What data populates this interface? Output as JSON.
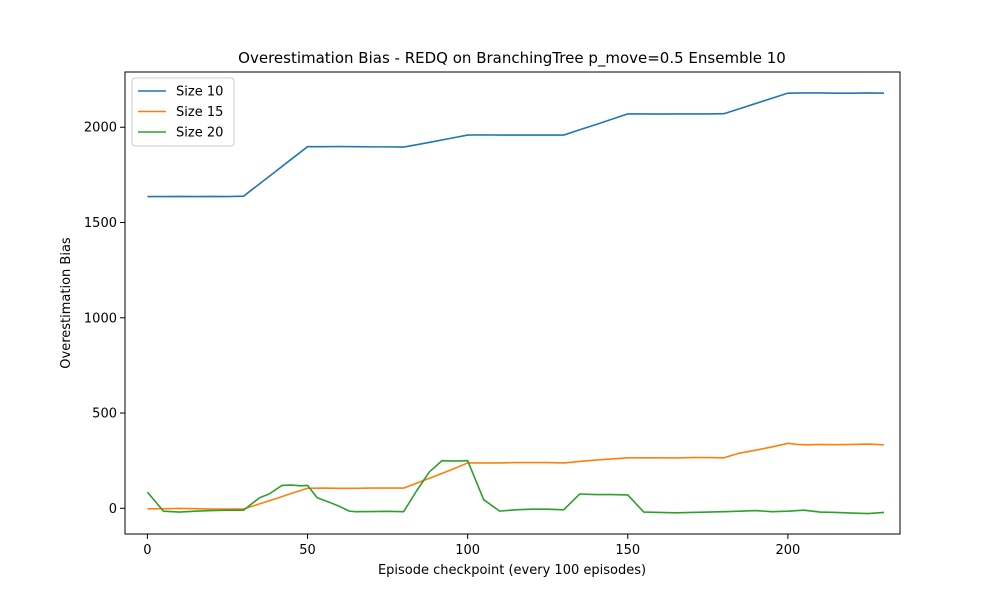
{
  "chart_data": {
    "type": "line",
    "title": "Overestimation Bias - REDQ on BranchingTree p_move=0.5 Ensemble 10",
    "xlabel": "Episode checkpoint (every 100 episodes)",
    "ylabel": "Overestimation Bias",
    "xlim": [
      -7,
      235
    ],
    "ylim": [
      -135,
      2290
    ],
    "xticks": [
      0,
      50,
      100,
      150,
      200
    ],
    "yticks": [
      0,
      500,
      1000,
      1500,
      2000
    ],
    "legend_position": "top-left",
    "grid": false,
    "series": [
      {
        "name": "Size 10",
        "color": "#1f77b4",
        "x": [
          0,
          5,
          10,
          15,
          20,
          25,
          30,
          35,
          40,
          45,
          50,
          55,
          60,
          65,
          70,
          75,
          80,
          85,
          90,
          95,
          100,
          105,
          110,
          115,
          120,
          125,
          130,
          135,
          140,
          145,
          150,
          155,
          160,
          165,
          170,
          175,
          180,
          185,
          190,
          195,
          200,
          205,
          210,
          215,
          220,
          225,
          230
        ],
        "values": [
          1636,
          1636,
          1637,
          1636,
          1637,
          1636,
          1638,
          1703,
          1768,
          1833,
          1898,
          1898,
          1899,
          1898,
          1897,
          1897,
          1896,
          1911,
          1927,
          1943,
          1959,
          1960,
          1959,
          1959,
          1959,
          1959,
          1959,
          1987,
          2014,
          2042,
          2070,
          2070,
          2069,
          2070,
          2070,
          2070,
          2071,
          2098,
          2125,
          2152,
          2179,
          2180,
          2180,
          2179,
          2179,
          2180,
          2179
        ]
      },
      {
        "name": "Size 15",
        "color": "#ff7f0e",
        "x": [
          0,
          5,
          10,
          15,
          20,
          25,
          30,
          35,
          40,
          45,
          50,
          55,
          60,
          65,
          70,
          75,
          80,
          85,
          90,
          95,
          100,
          105,
          110,
          115,
          120,
          125,
          130,
          135,
          140,
          145,
          150,
          155,
          160,
          165,
          170,
          175,
          180,
          185,
          190,
          195,
          200,
          203,
          206,
          210,
          215,
          220,
          225,
          230
        ],
        "values": [
          -3,
          -2,
          -1,
          -2,
          -4,
          -4,
          -4,
          23,
          50,
          78,
          105,
          106,
          105,
          105,
          106,
          106,
          106,
          138,
          170,
          203,
          238,
          238,
          238,
          240,
          240,
          240,
          238,
          246,
          253,
          259,
          265,
          265,
          265,
          264,
          266,
          266,
          265,
          290,
          305,
          322,
          341,
          335,
          333,
          335,
          334,
          335,
          337,
          333
        ]
      },
      {
        "name": "Size 20",
        "color": "#2ca02c",
        "x": [
          0,
          5,
          10,
          15,
          20,
          25,
          30,
          35,
          38,
          42,
          45,
          48,
          50,
          53,
          57,
          60,
          63,
          65,
          70,
          75,
          80,
          84,
          88,
          92,
          96,
          100,
          105,
          110,
          115,
          120,
          125,
          130,
          135,
          140,
          145,
          150,
          155,
          160,
          165,
          170,
          175,
          180,
          185,
          190,
          195,
          200,
          205,
          210,
          215,
          220,
          225,
          230
        ],
        "values": [
          85,
          -15,
          -20,
          -15,
          -12,
          -10,
          -10,
          55,
          75,
          120,
          122,
          118,
          120,
          55,
          30,
          10,
          -15,
          -18,
          -17,
          -16,
          -18,
          90,
          190,
          250,
          248,
          250,
          45,
          -15,
          -8,
          -5,
          -5,
          -8,
          75,
          72,
          72,
          70,
          -20,
          -22,
          -24,
          -22,
          -20,
          -18,
          -15,
          -12,
          -18,
          -15,
          -10,
          -20,
          -22,
          -25,
          -28,
          -22
        ]
      }
    ]
  }
}
